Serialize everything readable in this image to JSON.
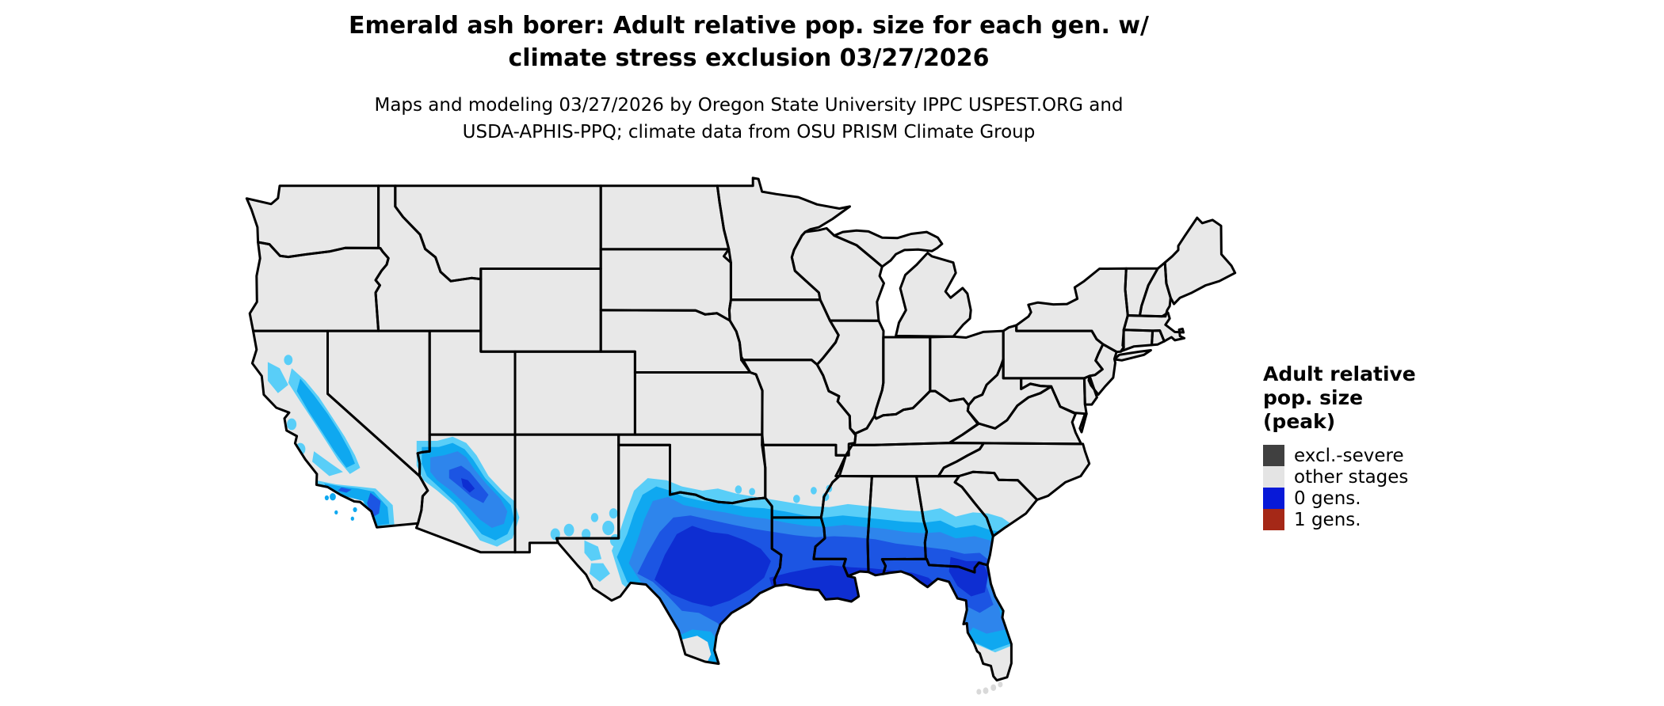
{
  "title": {
    "line1": "Emerald ash borer: Adult relative pop. size for each gen. w/",
    "line2": "climate stress exclusion 03/27/2026"
  },
  "subtitle": {
    "line1": "Maps and modeling 03/27/2026 by Oregon State University IPPC USPEST.ORG and",
    "line2": "USDA-APHIS-PPQ; climate data from OSU PRISM Climate Group"
  },
  "legend": {
    "title_line1": "Adult relative",
    "title_line2": "pop. size",
    "title_line3": "(peak)",
    "items": [
      {
        "label": "excl.-severe",
        "color": "#404040"
      },
      {
        "label": "other stages",
        "color": "#e4e4e4"
      },
      {
        "label": "0 gens.",
        "color": "#0819d8"
      },
      {
        "label": "1 gens.",
        "color": "#a52817"
      }
    ]
  },
  "map": {
    "background": "#ffffff",
    "state_fill": "#e8e8e8",
    "state_border": "#000000",
    "keys_fill": "#d9d9d9",
    "ramp": [
      "#59cef8",
      "#0fa8f0",
      "#2e85ec",
      "#1c55e3",
      "#0e2ed2"
    ]
  }
}
